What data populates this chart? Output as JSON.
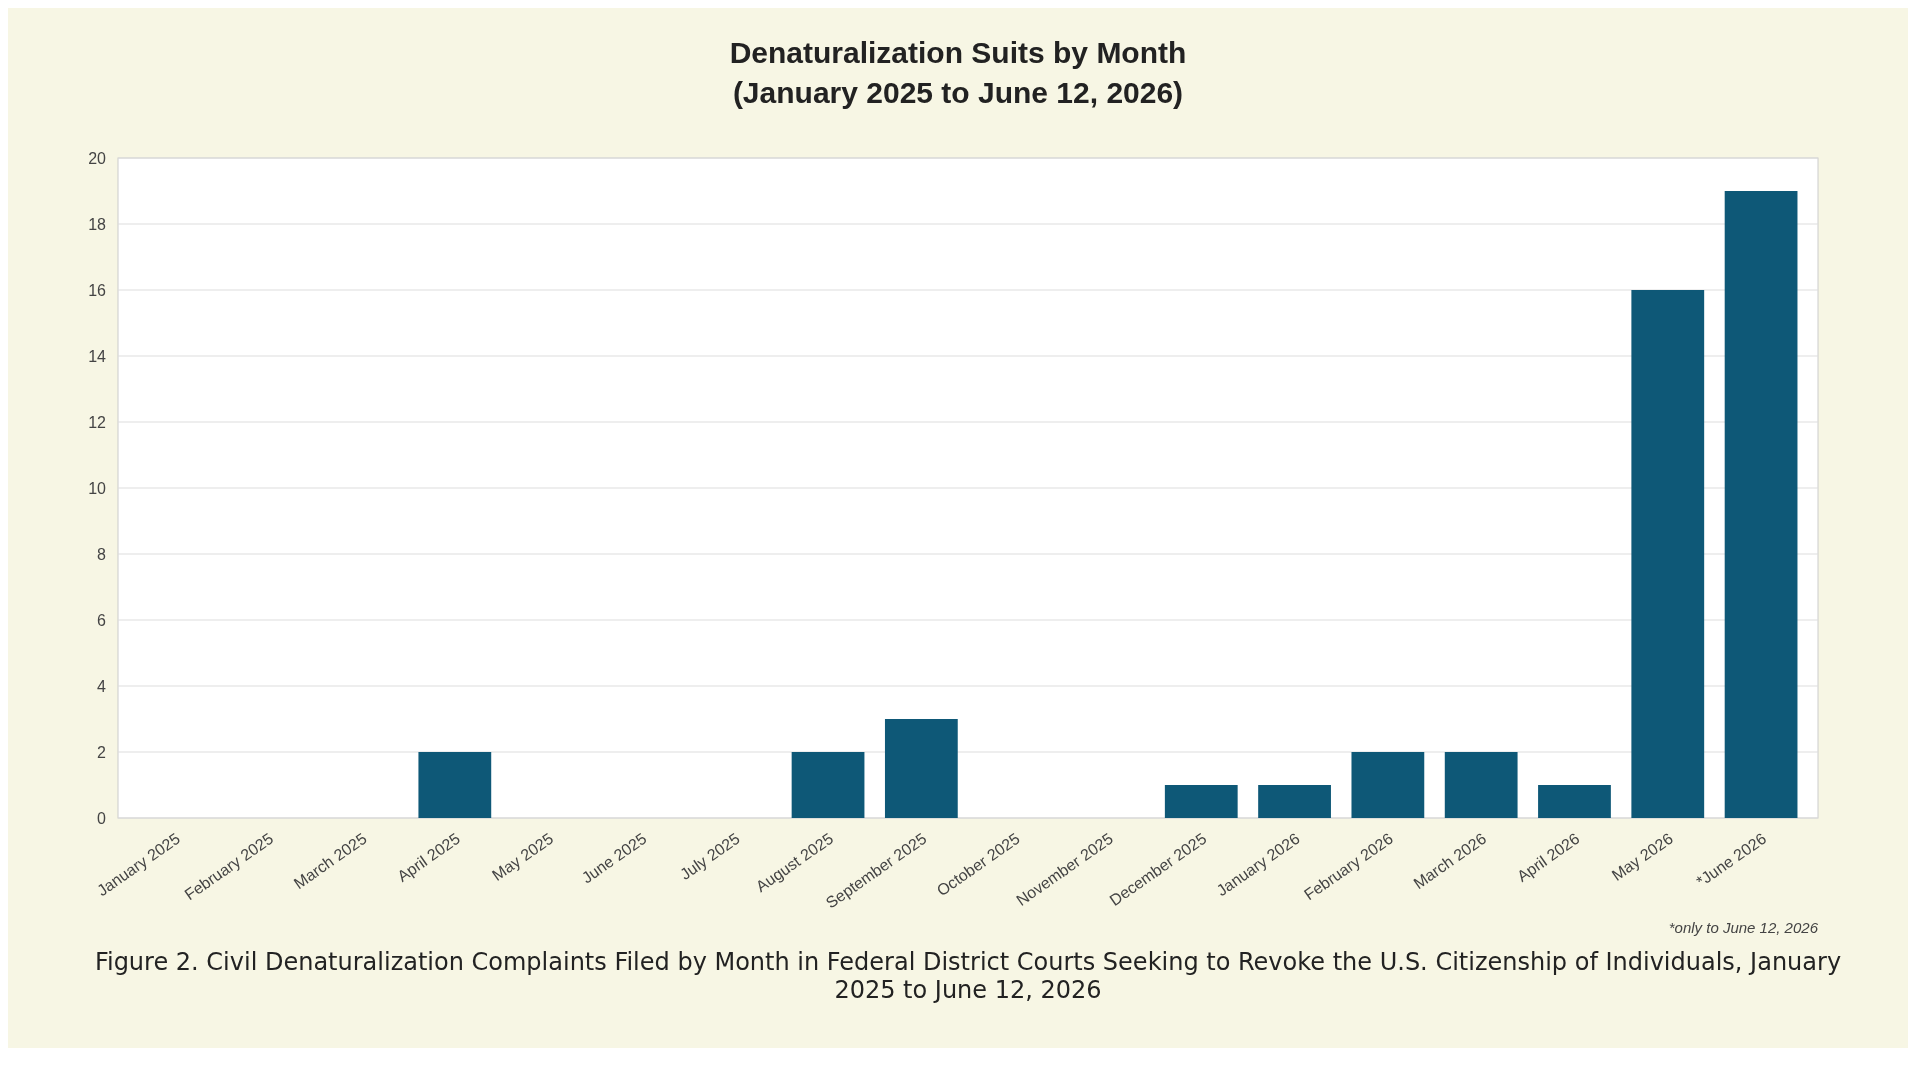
{
  "chart_data": {
    "type": "bar",
    "title": "Denaturalization Suits by Month",
    "subtitle": "(January 2025 to June 12, 2026)",
    "categories": [
      "January 2025",
      "February 2025",
      "March 2025",
      "April 2025",
      "May 2025",
      "June 2025",
      "July 2025",
      "August 2025",
      "September 2025",
      "October 2025",
      "November 2025",
      "December 2025",
      "January 2026",
      "February 2026",
      "March 2026",
      "April 2026",
      "May 2026",
      "*June 2026"
    ],
    "values": [
      0,
      0,
      0,
      2,
      0,
      0,
      0,
      2,
      3,
      0,
      0,
      1,
      1,
      2,
      2,
      1,
      16,
      19
    ],
    "color": "#0e5877",
    "ylim": [
      0,
      20
    ],
    "yticks": [
      0,
      2,
      4,
      6,
      8,
      10,
      12,
      14,
      16,
      18,
      20
    ],
    "grid": "y",
    "annotations": [
      "*only to June 12, 2026",
      "Figure 2. Civil Denaturalization Complaints Filed by Month in Federal District Courts Seeking to Revoke the U.S. Citizenship of Individuals, January 2025 to June 12, 2026"
    ]
  }
}
